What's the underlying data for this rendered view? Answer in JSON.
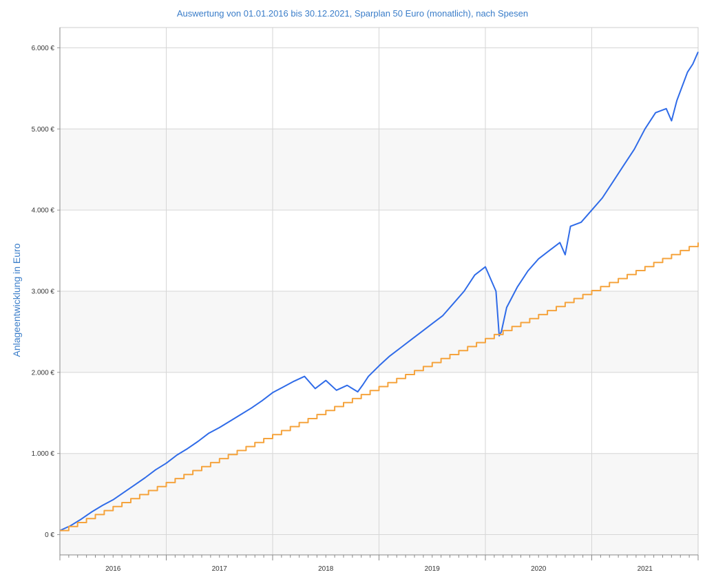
{
  "chart_data": {
    "type": "line",
    "title": "Auswertung von 01.01.2016 bis 30.12.2021, Sparplan 50 Euro (monatlich), nach Spesen",
    "ylabel": "Anlageentwicklung  in Euro",
    "xlabel": "",
    "y_ticks": [
      "0 €",
      "1.000 €",
      "2.000 €",
      "3.000 €",
      "4.000 €",
      "5.000 €",
      "6.000 €"
    ],
    "x_ticks": [
      "2016",
      "2017",
      "2018",
      "2019",
      "2020",
      "2021"
    ],
    "ylim": [
      -250,
      6250
    ],
    "xlim": [
      2016.0,
      2022.0
    ],
    "grid": true,
    "series": [
      {
        "color": "#2f6be8",
        "x": [
          2016.0,
          2016.1,
          2016.2,
          2016.3,
          2016.4,
          2016.5,
          2016.6,
          2016.7,
          2016.8,
          2016.9,
          2017.0,
          2017.1,
          2017.2,
          2017.3,
          2017.4,
          2017.5,
          2017.6,
          2017.7,
          2017.8,
          2017.9,
          2018.0,
          2018.1,
          2018.2,
          2018.3,
          2018.4,
          2018.5,
          2018.6,
          2018.7,
          2018.8,
          2018.85,
          2018.9,
          2019.0,
          2019.1,
          2019.2,
          2019.3,
          2019.4,
          2019.5,
          2019.6,
          2019.7,
          2019.8,
          2019.9,
          2020.0,
          2020.1,
          2020.13,
          2020.15,
          2020.2,
          2020.3,
          2020.4,
          2020.5,
          2020.6,
          2020.7,
          2020.75,
          2020.8,
          2020.9,
          2021.0,
          2021.1,
          2021.2,
          2021.3,
          2021.4,
          2021.5,
          2021.6,
          2021.7,
          2021.75,
          2021.8,
          2021.9,
          2021.95,
          2022.0
        ],
        "values": [
          50,
          110,
          190,
          280,
          360,
          430,
          520,
          610,
          700,
          800,
          880,
          980,
          1060,
          1150,
          1250,
          1320,
          1400,
          1480,
          1560,
          1650,
          1750,
          1820,
          1890,
          1950,
          1800,
          1900,
          1780,
          1840,
          1760,
          1850,
          1950,
          2080,
          2200,
          2300,
          2400,
          2500,
          2600,
          2700,
          2850,
          3000,
          3200,
          3300,
          3000,
          2450,
          2500,
          2800,
          3050,
          3250,
          3400,
          3500,
          3600,
          3450,
          3800,
          3850,
          4000,
          4150,
          4350,
          4550,
          4750,
          5000,
          5200,
          5250,
          5100,
          5350,
          5700,
          5800,
          5950
        ]
      },
      {
        "color": "#f5a33c",
        "x": [
          2016.0,
          2022.0
        ],
        "values": [
          50,
          3600
        ]
      }
    ]
  }
}
